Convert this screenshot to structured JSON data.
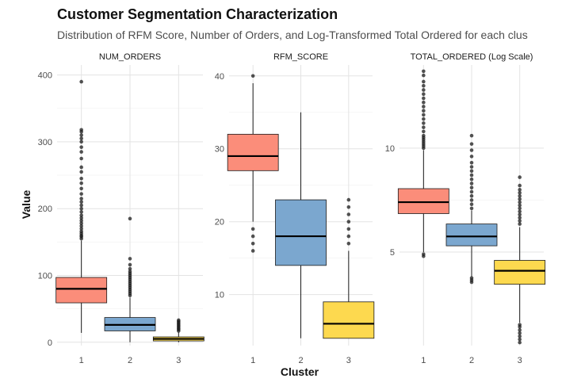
{
  "chart_data": {
    "type": "boxplot",
    "title": "Customer Segmentation Characterization",
    "subtitle": "Distribution of RFM Score, Number of Orders, and Log-Transformed Total Ordered for each clus",
    "xlabel": "Cluster",
    "ylabel": "Value",
    "categories": [
      "1",
      "2",
      "3"
    ],
    "colors": [
      "#fb8d7a",
      "#7ba7cf",
      "#fdd94f"
    ],
    "panels": [
      {
        "name": "NUM_ORDERS",
        "ylim": [
          -5,
          415
        ],
        "yticks": [
          0,
          100,
          200,
          300,
          400
        ],
        "boxes": [
          {
            "cluster": "1",
            "min": 14,
            "q1": 59,
            "median": 80,
            "q3": 97,
            "max": 152,
            "outliers": [
              155,
              158,
              160,
              163,
              166,
              170,
              174,
              178,
              182,
              186,
              190,
              195,
              200,
              205,
              210,
              215,
              222,
              230,
              238,
              245,
              255,
              262,
              275,
              285,
              292,
              300,
              305,
              310,
              315,
              318,
              390
            ]
          },
          {
            "cluster": "2",
            "min": 0,
            "q1": 17,
            "median": 26,
            "q3": 37,
            "max": 67,
            "outliers": [
              70,
              73,
              76,
              79,
              82,
              85,
              88,
              91,
              94,
              97,
              100,
              103,
              106,
              110,
              116,
              125,
              185
            ]
          },
          {
            "cluster": "3",
            "min": 0,
            "q1": 2,
            "median": 5,
            "q3": 8,
            "max": 15,
            "outliers": [
              17,
              19,
              21,
              23,
              25,
              27,
              29,
              31,
              33
            ]
          }
        ]
      },
      {
        "name": "RFM_SCORE",
        "ylim": [
          3,
          41.5
        ],
        "yticks": [
          10,
          20,
          30,
          40
        ],
        "boxes": [
          {
            "cluster": "1",
            "min": 20,
            "q1": 27,
            "median": 29,
            "q3": 32,
            "max": 39,
            "outliers": [
              16,
              17,
              18,
              19,
              40
            ]
          },
          {
            "cluster": "2",
            "min": 4,
            "q1": 14,
            "median": 18,
            "q3": 23,
            "max": 35,
            "outliers": []
          },
          {
            "cluster": "3",
            "min": 4,
            "q1": 4,
            "median": 6,
            "q3": 9,
            "max": 16,
            "outliers": [
              17,
              18,
              19,
              20,
              21,
              22,
              23
            ]
          }
        ]
      },
      {
        "name": "TOTAL_ORDERED (Log Scale)",
        "ylim": [
          0.5,
          14
        ],
        "yticks": [
          5,
          10
        ],
        "boxes": [
          {
            "cluster": "1",
            "min": 5.0,
            "q1": 6.85,
            "median": 7.4,
            "q3": 8.05,
            "max": 9.9,
            "outliers": [
              4.8,
              4.9,
              10.0,
              10.1,
              10.2,
              10.3,
              10.4,
              10.5,
              10.6,
              10.8,
              11.0,
              11.2,
              11.4,
              11.6,
              11.8,
              12.0,
              12.2,
              12.4,
              12.6,
              12.8,
              13.0,
              13.2,
              13.5,
              13.7
            ]
          },
          {
            "cluster": "2",
            "min": 3.8,
            "q1": 5.3,
            "median": 5.75,
            "q3": 6.35,
            "max": 7.0,
            "outliers": [
              3.55,
              3.65,
              3.75,
              7.1,
              7.3,
              7.5,
              7.7,
              7.9,
              8.1,
              8.3,
              8.5,
              8.7,
              8.9,
              9.1,
              9.3,
              9.6,
              9.9,
              10.2,
              10.6
            ]
          },
          {
            "cluster": "3",
            "min": 1.6,
            "q1": 3.45,
            "median": 4.1,
            "q3": 4.6,
            "max": 6.2,
            "outliers": [
              0.65,
              0.8,
              0.95,
              1.1,
              1.25,
              1.4,
              1.5,
              6.35,
              6.5,
              6.65,
              6.8,
              6.95,
              7.1,
              7.25,
              7.4,
              7.55,
              7.7,
              7.85,
              8.0,
              8.2,
              8.6
            ]
          }
        ]
      }
    ]
  }
}
